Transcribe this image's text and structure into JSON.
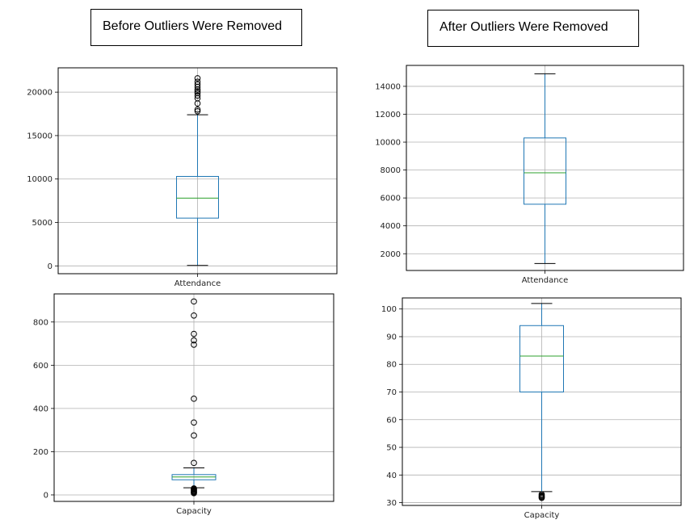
{
  "headings": {
    "before": "Before Outliers Were Removed",
    "after": "After Outliers Were Removed"
  },
  "colors": {
    "box": "#1f77b4",
    "median": "#2ca02c",
    "grid": "#b0b0b0",
    "frame": "#000000",
    "flier": "#000000"
  },
  "chart_data": [
    {
      "type": "box",
      "category": "Attendance",
      "ylim": [
        -900,
        22800
      ],
      "yticks": [
        0,
        5000,
        10000,
        15000,
        20000
      ],
      "grid": true,
      "whisker_low": 50,
      "q1": 5500,
      "median": 7800,
      "q3": 10300,
      "whisker_high": 17400,
      "fliers": [
        17800,
        18000,
        18700,
        19300,
        19600,
        19900,
        20100,
        20300,
        20600,
        20900,
        21200,
        21600
      ]
    },
    {
      "type": "box",
      "category": "Capacity",
      "ylim": [
        -30,
        930
      ],
      "yticks": [
        0,
        200,
        400,
        600,
        800
      ],
      "grid": true,
      "whisker_low": 33,
      "q1": 70,
      "median": 83,
      "q3": 94,
      "whisker_high": 125,
      "fliers": [
        895,
        830,
        745,
        715,
        695,
        445,
        335,
        275,
        148,
        30,
        27,
        24,
        20,
        17,
        14,
        11,
        8
      ]
    },
    {
      "type": "box",
      "category": "Attendance",
      "ylim": [
        800,
        15500
      ],
      "yticks": [
        2000,
        4000,
        6000,
        8000,
        10000,
        12000,
        14000
      ],
      "grid": true,
      "whisker_low": 1300,
      "q1": 5550,
      "median": 7800,
      "q3": 10300,
      "whisker_high": 14900,
      "fliers": []
    },
    {
      "type": "box",
      "category": "Capacity",
      "ylim": [
        29,
        104
      ],
      "yticks": [
        30,
        40,
        50,
        60,
        70,
        80,
        90,
        100
      ],
      "grid": true,
      "whisker_low": 34,
      "q1": 70,
      "median": 83,
      "q3": 94,
      "whisker_high": 102,
      "fliers": [
        33,
        32.6,
        32.3,
        32,
        31.7
      ]
    }
  ]
}
